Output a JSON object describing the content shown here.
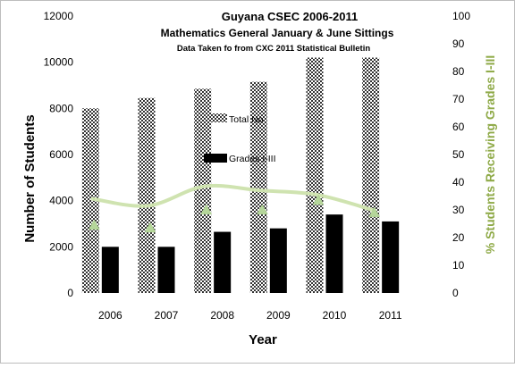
{
  "chart_data": {
    "type": "bar",
    "title": "Guyana CSEC 2006-2011",
    "subtitle": "Mathematics General January & June Sittings",
    "source_note": "Data Taken fo from CXC 2011 Statistical Bulletin",
    "categories": [
      "2006",
      "2007",
      "2008",
      "2009",
      "2010",
      "2011"
    ],
    "xlabel": "Year",
    "ylabel": "Number of Students",
    "y2label": "% Students Receiving Grades I-III",
    "ylim": [
      0,
      12000
    ],
    "y_ticks": [
      "0",
      "2000",
      "4000",
      "6000",
      "8000",
      "10000",
      "12000"
    ],
    "y2lim": [
      0,
      100
    ],
    "y2_ticks": [
      "0",
      "10",
      "20",
      "30",
      "40",
      "50",
      "60",
      "70",
      "80",
      "90",
      "100"
    ],
    "series": [
      {
        "name": "Total No",
        "kind": "bar",
        "axis": "left",
        "pattern": "checkered",
        "values": [
          8000,
          8450,
          8850,
          9150,
          10200,
          10200
        ]
      },
      {
        "name": "Grades I-III",
        "kind": "bar",
        "axis": "left",
        "color": "#000000",
        "values": [
          2000,
          2000,
          2650,
          2800,
          3400,
          3100
        ]
      },
      {
        "name": "",
        "kind": "point-and-trend",
        "axis": "right",
        "color": "#b5d69a",
        "values": [
          24.5,
          23.5,
          30,
          30,
          33.5,
          29
        ]
      }
    ],
    "legend_placement": "inside top-center",
    "grid": false,
    "y2_color": "#8faa48"
  }
}
